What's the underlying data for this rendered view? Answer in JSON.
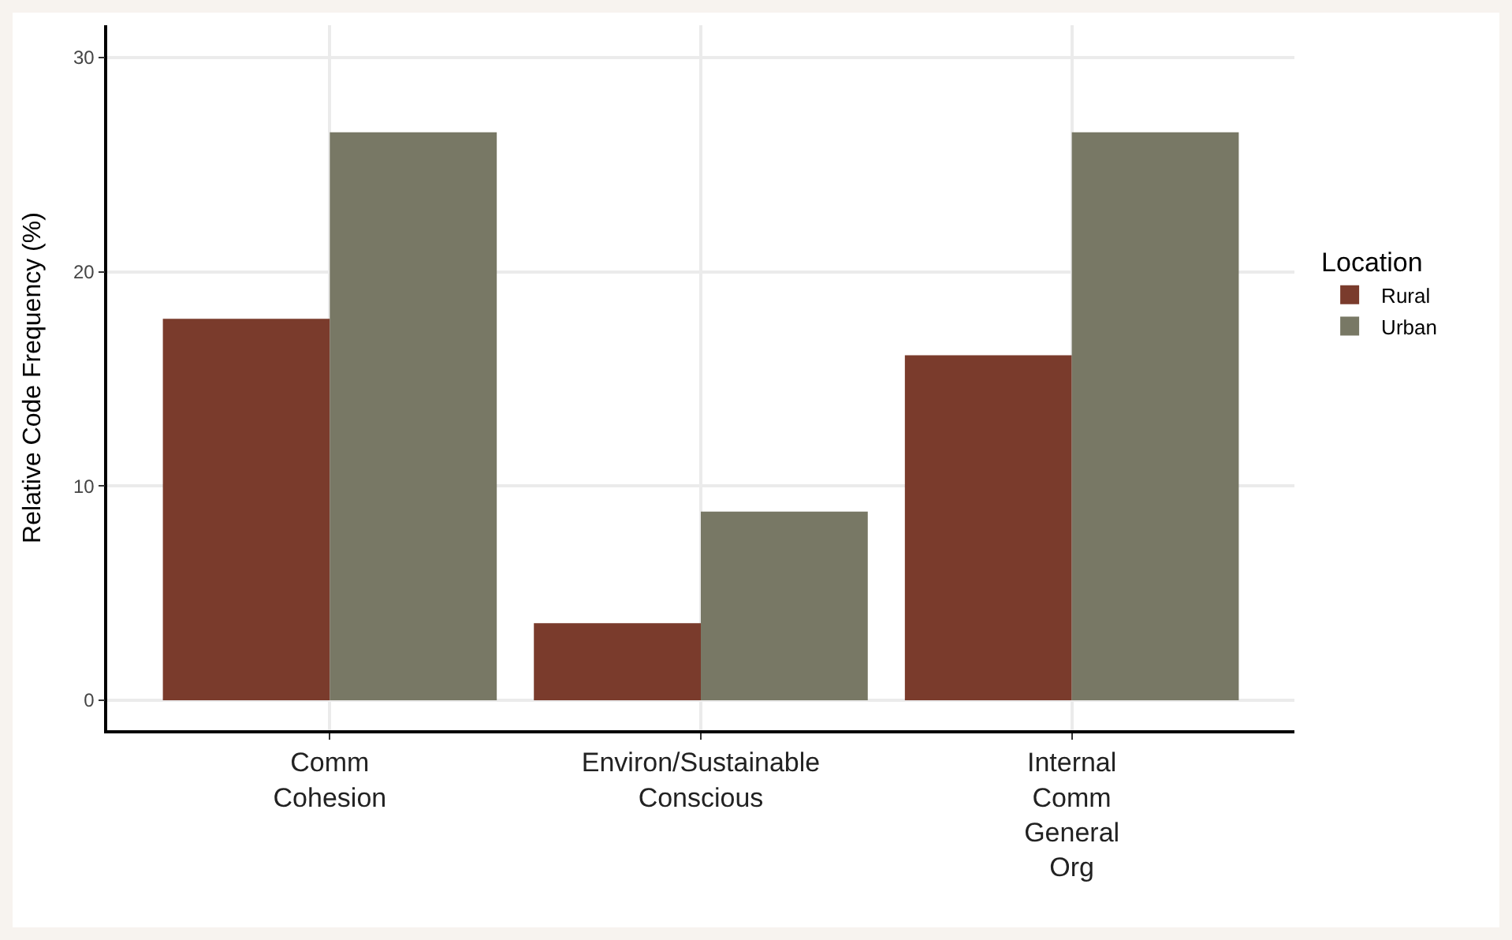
{
  "chart_data": {
    "type": "bar",
    "ylabel": "Relative Code Frequency (%)",
    "legend_title": "Location",
    "categories": [
      "Comm\nCohesion",
      "Environ/Sustainable\nConscious",
      "Internal\nComm\nGeneral\nOrg"
    ],
    "series": [
      {
        "name": "Rural",
        "color": "#7a3b2c",
        "values": [
          17.8,
          3.6,
          16.1
        ]
      },
      {
        "name": "Urban",
        "color": "#787865",
        "values": [
          26.5,
          8.8,
          26.5
        ]
      }
    ],
    "ylim": [
      -1.4,
      31.5
    ],
    "yticks": [
      0,
      10,
      20,
      30
    ],
    "grid": true,
    "legend": "right"
  }
}
